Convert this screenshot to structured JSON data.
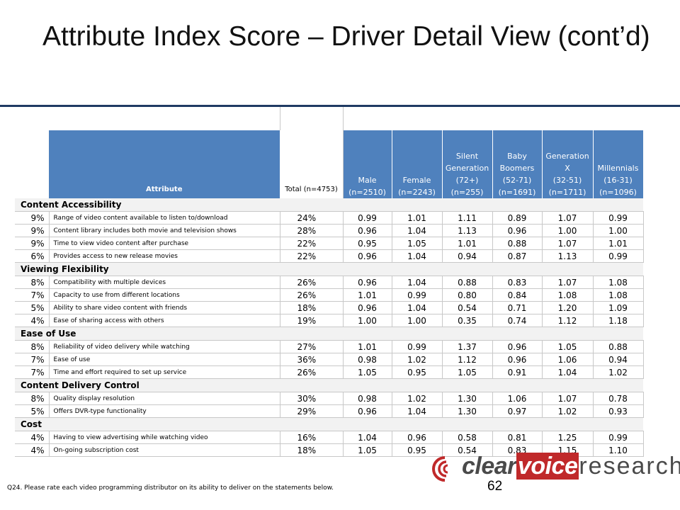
{
  "title": "Attribute Index Score – Driver Detail View (cont’d)",
  "table": {
    "headers": {
      "attribute": "Attribute",
      "total": "Total (n=4753)",
      "male": [
        "Male",
        "(n=2510)"
      ],
      "female": [
        "Female",
        "(n=2243)"
      ],
      "silent": [
        "Silent",
        "Generation",
        "(72+)",
        "(n=255)"
      ],
      "boomers": [
        "Baby",
        "Boomers",
        "(52-71)",
        "(n=1691)"
      ],
      "genx": [
        "Generation",
        "X",
        "(32-51)",
        "(n=1711)"
      ],
      "millennials": [
        "Millennials",
        "(16-31)",
        "(n=1096)"
      ]
    },
    "groups": [
      {
        "name": "Content Accessibility",
        "rows": [
          {
            "pct": "9%",
            "statement": "Range of video content available to listen to/download",
            "total": "24%",
            "values": [
              "0.99",
              "1.01",
              "1.11",
              "0.89",
              "1.07",
              "0.99"
            ]
          },
          {
            "pct": "9%",
            "statement": "Content library includes both movie and television shows",
            "total": "28%",
            "values": [
              "0.96",
              "1.04",
              "1.13",
              "0.96",
              "1.00",
              "1.00"
            ]
          },
          {
            "pct": "9%",
            "statement": "Time to view video content after purchase",
            "total": "22%",
            "values": [
              "0.95",
              "1.05",
              "1.01",
              "0.88",
              "1.07",
              "1.01"
            ]
          },
          {
            "pct": "6%",
            "statement": "Provides access to new release movies",
            "total": "22%",
            "values": [
              "0.96",
              "1.04",
              "0.94",
              "0.87",
              "1.13",
              "0.99"
            ]
          }
        ]
      },
      {
        "name": "Viewing Flexibility",
        "rows": [
          {
            "pct": "8%",
            "statement": "Compatibility with multiple devices",
            "total": "26%",
            "values": [
              "0.96",
              "1.04",
              "0.88",
              "0.83",
              "1.07",
              "1.08"
            ]
          },
          {
            "pct": "7%",
            "statement": "Capacity to use from different locations",
            "total": "26%",
            "values": [
              "1.01",
              "0.99",
              "0.80",
              "0.84",
              "1.08",
              "1.08"
            ]
          },
          {
            "pct": "5%",
            "statement": "Ability to share video content with friends",
            "total": "18%",
            "values": [
              "0.96",
              "1.04",
              "0.54",
              "0.71",
              "1.20",
              "1.09"
            ]
          },
          {
            "pct": "4%",
            "statement": "Ease of sharing access with others",
            "total": "19%",
            "values": [
              "1.00",
              "1.00",
              "0.35",
              "0.74",
              "1.12",
              "1.18"
            ]
          }
        ]
      },
      {
        "name": "Ease of Use",
        "rows": [
          {
            "pct": "8%",
            "statement": "Reliability of video delivery while watching",
            "total": "27%",
            "values": [
              "1.01",
              "0.99",
              "1.37",
              "0.96",
              "1.05",
              "0.88"
            ]
          },
          {
            "pct": "7%",
            "statement": "Ease of use",
            "total": "36%",
            "values": [
              "0.98",
              "1.02",
              "1.12",
              "0.96",
              "1.06",
              "0.94"
            ]
          },
          {
            "pct": "7%",
            "statement": "Time and effort required to set up service",
            "total": "26%",
            "values": [
              "1.05",
              "0.95",
              "1.05",
              "0.91",
              "1.04",
              "1.02"
            ]
          }
        ]
      },
      {
        "name": "Content Delivery Control",
        "rows": [
          {
            "pct": "8%",
            "statement": "Quality display resolution",
            "total": "30%",
            "values": [
              "0.98",
              "1.02",
              "1.30",
              "1.06",
              "1.07",
              "0.78"
            ]
          },
          {
            "pct": "5%",
            "statement": "Offers DVR-type functionality",
            "total": "29%",
            "values": [
              "0.96",
              "1.04",
              "1.30",
              "0.97",
              "1.02",
              "0.93"
            ]
          }
        ]
      },
      {
        "name": "Cost",
        "rows": [
          {
            "pct": "4%",
            "statement": "Having to view advertising while watching video",
            "total": "16%",
            "values": [
              "1.04",
              "0.96",
              "0.58",
              "0.81",
              "1.25",
              "0.99"
            ]
          },
          {
            "pct": "4%",
            "statement": "On-going subscription cost",
            "total": "18%",
            "values": [
              "1.05",
              "0.95",
              "0.54",
              "0.83",
              "1.15",
              "1.10"
            ]
          }
        ]
      }
    ]
  },
  "footnote": "Q24. Please rate each video programming distributor on its ability to deliver on the statements below.",
  "page_number": "62",
  "logo": {
    "part1": "clear",
    "part2": "voice",
    "part3": "research"
  },
  "colors": {
    "header_blue": "#4f81bd",
    "rule_navy": "#1f3a63",
    "logo_red": "#c0292a"
  }
}
